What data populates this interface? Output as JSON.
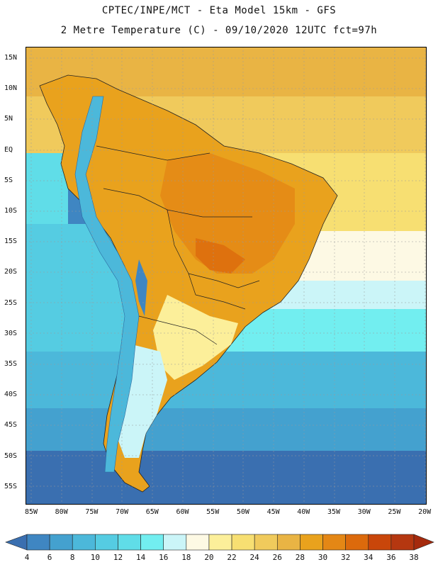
{
  "header": {
    "line1": "CPTEC/INPE/MCT -  Eta Model 15km - GFS",
    "line2": "2 Metre Temperature (C) - 09/10/2020 12UTC fct=97h"
  },
  "map": {
    "variable": "2 Metre Temperature (C)",
    "region": "South America",
    "lat_labels": [
      "15N",
      "10N",
      "5N",
      "EQ",
      "5S",
      "10S",
      "15S",
      "20S",
      "25S",
      "30S",
      "35S",
      "40S",
      "45S",
      "50S",
      "55S"
    ],
    "lon_labels": [
      "85W",
      "80W",
      "75W",
      "70W",
      "65W",
      "60W",
      "55W",
      "50W",
      "45W",
      "40W",
      "35W",
      "30W",
      "25W",
      "20W"
    ]
  },
  "colorbar": {
    "ticks": [
      "4",
      "6",
      "8",
      "10",
      "12",
      "14",
      "16",
      "18",
      "20",
      "22",
      "24",
      "26",
      "28",
      "30",
      "32",
      "34",
      "36",
      "38"
    ],
    "colors": [
      "#3a6fb0",
      "#3f86c2",
      "#44a1cf",
      "#4cb8da",
      "#55cce2",
      "#60dde8",
      "#72eef0",
      "#cbf5f8",
      "#fdf9e4",
      "#fcef9a",
      "#f7df72",
      "#f0ca5c",
      "#e9b444",
      "#e9a21d",
      "#e48715",
      "#dc6a0c",
      "#c9460a",
      "#b53710",
      "#a52a0d"
    ]
  }
}
